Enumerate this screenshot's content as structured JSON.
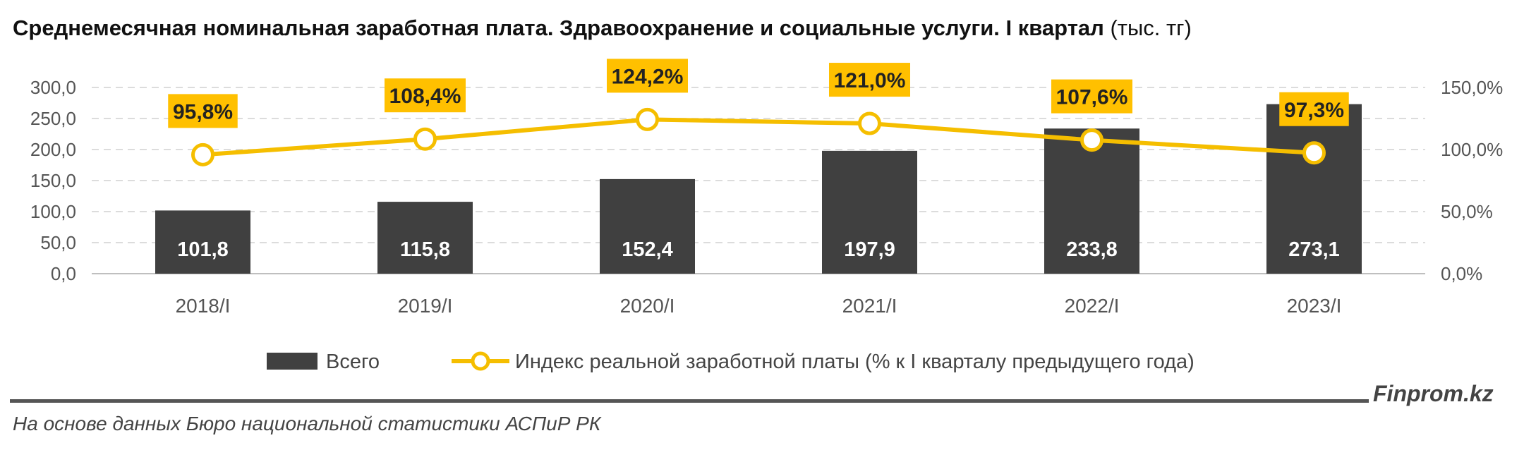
{
  "header": {
    "title_bold": "Среднемесячная номинальная заработная плата. Здравоохранение и социальные услуги. I квартал",
    "title_unit": "(тыс. тг)"
  },
  "footer": {
    "brand": "Finprom.kz",
    "source": "На основе данных Бюро национальной статистики АСПиР РК"
  },
  "chart_data": {
    "type": "bar",
    "categories": [
      "2018/I",
      "2019/I",
      "2020/I",
      "2021/I",
      "2022/I",
      "2023/I"
    ],
    "series": [
      {
        "name": "Всего",
        "type": "bar",
        "axis": "left",
        "values": [
          101.8,
          115.8,
          152.4,
          197.9,
          233.8,
          273.1
        ],
        "labels": [
          "101,8",
          "115,8",
          "152,4",
          "197,9",
          "233,8",
          "273,1"
        ],
        "color": "#404040"
      },
      {
        "name": "Индекс реальной заработной платы (% к I кварталу предыдущего года)",
        "type": "line",
        "axis": "right",
        "values": [
          95.8,
          108.4,
          124.2,
          121.0,
          107.6,
          97.3
        ],
        "labels": [
          "95,8%",
          "108,4%",
          "124,2%",
          "121,0%",
          "107,6%",
          "97,3%"
        ],
        "color": "#F5BE00"
      }
    ],
    "y_left": {
      "min": 0,
      "max": 300,
      "ticks": [
        "0,0",
        "50,0",
        "100,0",
        "150,0",
        "200,0",
        "250,0",
        "300,0"
      ]
    },
    "y_right": {
      "min": 0,
      "max": 150,
      "ticks": [
        "0,0%",
        "50,0%",
        "100,0%",
        "150,0%"
      ]
    },
    "grid": true,
    "legend_position": "bottom"
  }
}
